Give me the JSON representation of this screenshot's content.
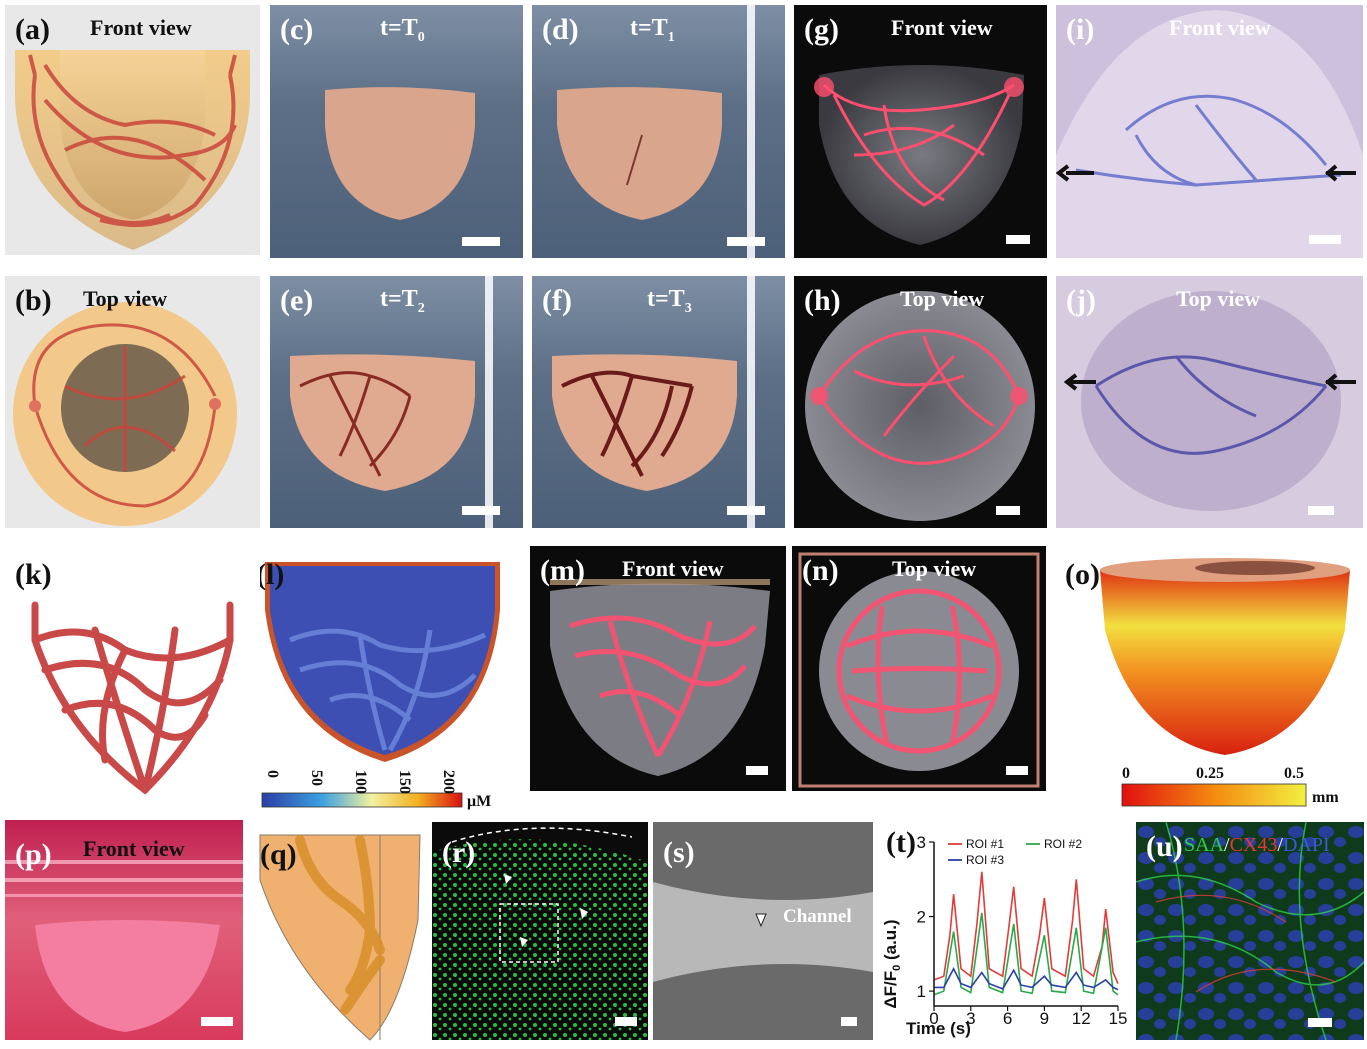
{
  "panels": {
    "a": {
      "label": "(a)",
      "title": "Front view"
    },
    "b": {
      "label": "(b)",
      "title": "Top view"
    },
    "c": {
      "label": "(c)",
      "title": "t=T",
      "sub": "0"
    },
    "d": {
      "label": "(d)",
      "title": "t=T",
      "sub": "1"
    },
    "e": {
      "label": "(e)",
      "title": "t=T",
      "sub": "2"
    },
    "f": {
      "label": "(f)",
      "title": "t=T",
      "sub": "3"
    },
    "g": {
      "label": "(g)",
      "title": "Front view"
    },
    "h": {
      "label": "(h)",
      "title": "Top view"
    },
    "i": {
      "label": "(i)",
      "title": "Front view"
    },
    "j": {
      "label": "(j)",
      "title": "Top view"
    },
    "k": {
      "label": "(k)"
    },
    "l": {
      "label": "(l)"
    },
    "m": {
      "label": "(m)",
      "title": "Front view"
    },
    "n": {
      "label": "(n)",
      "title": "Top view"
    },
    "o": {
      "label": "(o)"
    },
    "p": {
      "label": "(p)",
      "title": "Front view"
    },
    "q": {
      "label": "(q)"
    },
    "r": {
      "label": "(r)"
    },
    "s": {
      "label": "(s)",
      "annotation": "Channel"
    },
    "t": {
      "label": "(t)"
    },
    "u": {
      "label": "(u)",
      "stain_1": "SAA",
      "sep": "/",
      "stain_2": "CX43",
      "stain_3": "DAPI"
    }
  },
  "colorbars": {
    "l": {
      "ticks": [
        "0",
        "50",
        "100",
        "150",
        "200"
      ],
      "unit": "μM",
      "colors": [
        "#2b3fa8",
        "#3ca0e0",
        "#f2f2a0",
        "#f2b020",
        "#d81010"
      ]
    },
    "o": {
      "ticks": [
        "0",
        "0.25",
        "0.5"
      ],
      "unit": "mm",
      "colors": [
        "#e01010",
        "#f58a10",
        "#f2f040"
      ]
    }
  },
  "colors": {
    "roi1": "#e23b3b",
    "roi2": "#2aa84a",
    "roi3": "#2b3fa8",
    "vessel": "#e8506a"
  },
  "chart_data": {
    "type": "line",
    "xlabel": "Time (s)",
    "ylabel": "ΔF/F",
    "ylabel_sub": "0",
    "ylabel_unit": " (a.u.)",
    "xlim": [
      0,
      15
    ],
    "ylim": [
      0.8,
      3.0
    ],
    "xticks": [
      0,
      3,
      6,
      9,
      12,
      15
    ],
    "yticks": [
      1,
      2,
      3
    ],
    "legend_position": "top",
    "series": [
      {
        "name": "ROI #1",
        "color": "#e23b3b",
        "x": [
          0,
          0.8,
          1.3,
          1.6,
          2.2,
          3.0,
          3.5,
          3.9,
          4.5,
          5.6,
          6.1,
          6.5,
          7.1,
          8.0,
          8.6,
          9.0,
          9.6,
          10.7,
          11.3,
          11.6,
          12.2,
          13.0,
          13.7,
          14.0,
          14.6,
          15.0
        ],
        "y": [
          1.15,
          1.2,
          1.75,
          2.3,
          1.3,
          1.2,
          1.9,
          2.6,
          1.3,
          1.2,
          1.85,
          2.4,
          1.3,
          1.2,
          1.75,
          2.25,
          1.3,
          1.2,
          1.95,
          2.5,
          1.3,
          1.2,
          1.6,
          2.1,
          1.25,
          1.1
        ]
      },
      {
        "name": "ROI #2",
        "color": "#2aa84a",
        "x": [
          0,
          0.8,
          1.6,
          2.2,
          3.0,
          3.9,
          4.5,
          5.6,
          6.5,
          7.1,
          8.0,
          9.0,
          9.6,
          10.7,
          11.6,
          12.2,
          13.0,
          14.0,
          14.6,
          15.0
        ],
        "y": [
          0.95,
          1.0,
          1.8,
          1.05,
          0.98,
          2.05,
          1.05,
          0.98,
          1.9,
          1.0,
          0.97,
          1.75,
          1.0,
          0.98,
          1.85,
          1.0,
          0.97,
          1.85,
          1.0,
          0.95
        ]
      },
      {
        "name": "ROI #3",
        "color": "#2b3fa8",
        "x": [
          0,
          0.8,
          1.6,
          2.2,
          3.0,
          3.9,
          4.5,
          5.6,
          6.5,
          7.1,
          8.0,
          9.0,
          9.6,
          10.7,
          11.6,
          12.2,
          13.0,
          14.0,
          14.6,
          15.0
        ],
        "y": [
          1.05,
          1.05,
          1.3,
          1.1,
          1.05,
          1.25,
          1.1,
          1.03,
          1.28,
          1.08,
          1.05,
          1.2,
          1.08,
          1.05,
          1.25,
          1.08,
          1.05,
          1.15,
          1.05,
          1.02
        ]
      }
    ]
  }
}
